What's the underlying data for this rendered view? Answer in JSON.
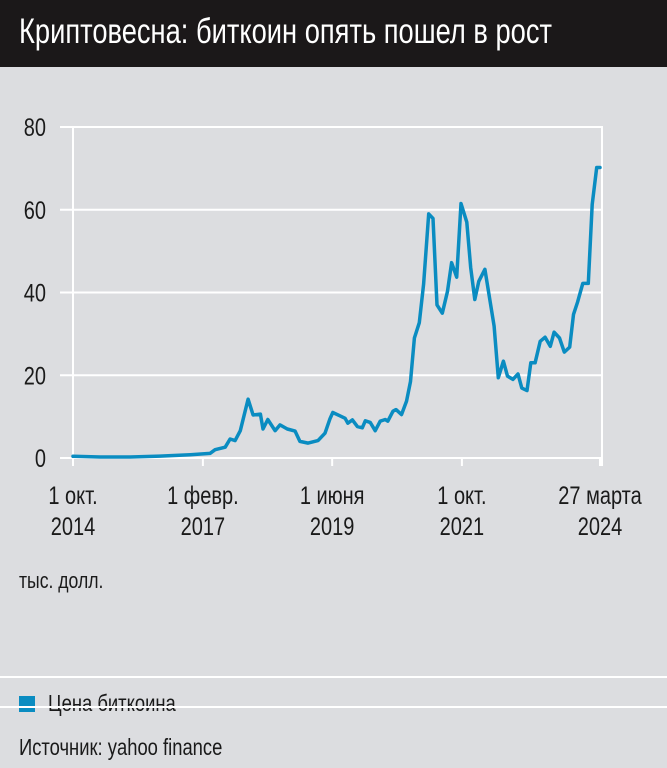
{
  "header": {
    "title": "Криптовесна: биткоин опять пошел в рост"
  },
  "chart_data": {
    "type": "line",
    "title": "Криптовесна: биткоин опять пошел в рост",
    "ylabel": "тыс. долл.",
    "ylim": [
      0,
      80
    ],
    "yticks": [
      "0",
      "20",
      "40",
      "60",
      "80"
    ],
    "xlim": [
      "2014-10-01",
      "2024-03-27"
    ],
    "xticks": [
      {
        "date": "2014-10-01",
        "line1": "1 окт.",
        "line2": "2014"
      },
      {
        "date": "2017-02-01",
        "line1": "1 февр.",
        "line2": "2017"
      },
      {
        "date": "2019-06-01",
        "line1": "1 июня",
        "line2": "2019"
      },
      {
        "date": "2021-10-01",
        "line1": "1 окт.",
        "line2": "2021"
      },
      {
        "date": "2024-03-27",
        "line1": "27 марта",
        "line2": "2024"
      }
    ],
    "grid": true,
    "legend_position": "bottom",
    "series": [
      {
        "name": "Цена биткоина",
        "color": "#0a8cc1",
        "points": [
          [
            "2014-10-01",
            0.4
          ],
          [
            "2015-03-28",
            0.25
          ],
          [
            "2015-10-12",
            0.25
          ],
          [
            "2016-04-25",
            0.45
          ],
          [
            "2016-11-10",
            0.8
          ],
          [
            "2017-03-20",
            1.1
          ],
          [
            "2017-04-22",
            2.0
          ],
          [
            "2017-06-28",
            2.6
          ],
          [
            "2017-07-30",
            4.6
          ],
          [
            "2017-09-01",
            4.2
          ],
          [
            "2017-10-05",
            6.6
          ],
          [
            "2017-11-25",
            14.2
          ],
          [
            "2017-12-28",
            10.4
          ],
          [
            "2018-02-14",
            10.6
          ],
          [
            "2018-03-03",
            7.0
          ],
          [
            "2018-04-04",
            9.3
          ],
          [
            "2018-05-22",
            6.6
          ],
          [
            "2018-06-23",
            8.0
          ],
          [
            "2018-08-10",
            7.0
          ],
          [
            "2018-09-30",
            6.5
          ],
          [
            "2018-11-01",
            4.0
          ],
          [
            "2018-12-25",
            3.6
          ],
          [
            "2019-02-28",
            4.2
          ],
          [
            "2019-04-15",
            6.0
          ],
          [
            "2019-05-18",
            9.5
          ],
          [
            "2019-06-05",
            11.0
          ],
          [
            "2019-07-22",
            10.2
          ],
          [
            "2019-08-25",
            9.6
          ],
          [
            "2019-09-12",
            8.4
          ],
          [
            "2019-10-12",
            9.2
          ],
          [
            "2019-11-14",
            7.6
          ],
          [
            "2019-12-16",
            7.3
          ],
          [
            "2020-01-05",
            9.0
          ],
          [
            "2020-02-06",
            8.6
          ],
          [
            "2020-03-10",
            6.6
          ],
          [
            "2020-04-12",
            8.9
          ],
          [
            "2020-05-15",
            9.3
          ],
          [
            "2020-06-01",
            8.9
          ],
          [
            "2020-07-05",
            11.3
          ],
          [
            "2020-07-25",
            11.7
          ],
          [
            "2020-08-30",
            10.5
          ],
          [
            "2020-10-02",
            13.7
          ],
          [
            "2020-10-28",
            18.5
          ],
          [
            "2020-11-23",
            29
          ],
          [
            "2020-12-25",
            32.7
          ],
          [
            "2021-01-22",
            42
          ],
          [
            "2021-02-25",
            59
          ],
          [
            "2021-03-25",
            57.9
          ],
          [
            "2021-04-20",
            37
          ],
          [
            "2021-05-25",
            35
          ],
          [
            "2021-06-28",
            40.3
          ],
          [
            "2021-07-25",
            47.2
          ],
          [
            "2021-08-28",
            43.7
          ],
          [
            "2021-09-25",
            61.5
          ],
          [
            "2021-11-02",
            57
          ],
          [
            "2021-11-28",
            46
          ],
          [
            "2021-12-25",
            38.3
          ],
          [
            "2022-01-20",
            42.7
          ],
          [
            "2022-03-01",
            45.6
          ],
          [
            "2022-05-01",
            31.9
          ],
          [
            "2022-05-28",
            19.4
          ],
          [
            "2022-07-01",
            23.4
          ],
          [
            "2022-07-28",
            19.8
          ],
          [
            "2022-09-01",
            19.0
          ],
          [
            "2022-10-05",
            20.3
          ],
          [
            "2022-10-30",
            16.9
          ],
          [
            "2022-12-03",
            16.3
          ],
          [
            "2022-12-28",
            23
          ],
          [
            "2023-01-25",
            23
          ],
          [
            "2023-02-28",
            28.2
          ],
          [
            "2023-04-01",
            29.2
          ],
          [
            "2023-05-05",
            27
          ],
          [
            "2023-05-30",
            30.4
          ],
          [
            "2023-07-05",
            29
          ],
          [
            "2023-08-05",
            25.6
          ],
          [
            "2023-09-10",
            26.8
          ],
          [
            "2023-10-05",
            34.7
          ],
          [
            "2023-11-01",
            37.7
          ],
          [
            "2023-12-05",
            42.2
          ],
          [
            "2024-01-10",
            42.2
          ],
          [
            "2024-02-05",
            61.3
          ],
          [
            "2024-03-05",
            70.2
          ],
          [
            "2024-03-27",
            70.2
          ]
        ]
      }
    ]
  },
  "legend": {
    "label": "Цена биткоина",
    "color": "#0a8cc1"
  },
  "unit_label": "тыс. долл.",
  "source": "Источник: yahoo finance"
}
